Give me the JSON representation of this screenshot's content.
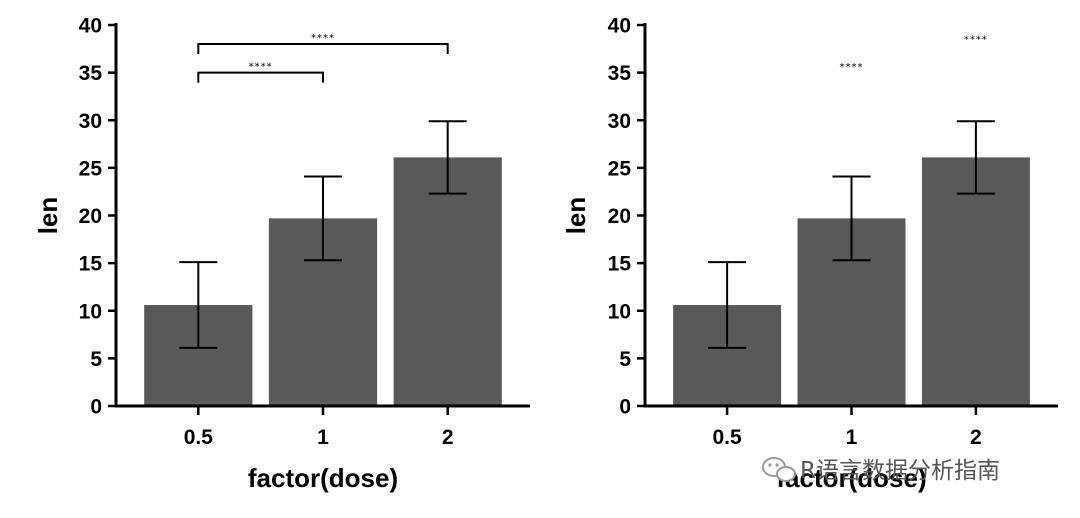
{
  "chart_data": [
    {
      "type": "bar",
      "xlabel": "factor(dose)",
      "ylabel": "len",
      "categories": [
        "0.5",
        "1",
        "2"
      ],
      "values": [
        10.6,
        19.7,
        26.1
      ],
      "error_low": [
        6.1,
        15.3,
        22.3
      ],
      "error_high": [
        15.1,
        24.1,
        29.9
      ],
      "ylim": [
        0,
        40
      ],
      "yticks": [
        "0",
        "5",
        "10",
        "15",
        "20",
        "25",
        "30",
        "35",
        "40"
      ],
      "bar_color": "#595959",
      "grid": false,
      "annotations": [
        {
          "type": "bracket",
          "from": "0.5",
          "to": "2",
          "y": 38.0,
          "label": "****"
        },
        {
          "type": "bracket",
          "from": "0.5",
          "to": "1",
          "y": 35.0,
          "label": "****"
        }
      ]
    },
    {
      "type": "bar",
      "xlabel": "factor(dose)",
      "ylabel": "len",
      "categories": [
        "0.5",
        "1",
        "2"
      ],
      "values": [
        10.6,
        19.7,
        26.1
      ],
      "error_low": [
        6.1,
        15.3,
        22.3
      ],
      "error_high": [
        15.1,
        24.1,
        29.9
      ],
      "ylim": [
        0,
        40
      ],
      "yticks": [
        "0",
        "5",
        "10",
        "15",
        "20",
        "25",
        "30",
        "35",
        "40"
      ],
      "bar_color": "#595959",
      "grid": false,
      "annotations": [
        {
          "type": "label",
          "at": "1",
          "y": 35.7,
          "label": "****"
        },
        {
          "type": "label",
          "at": "2",
          "y": 38.6,
          "label": "****"
        }
      ]
    }
  ],
  "watermark": {
    "text": "R语言数据分析指南",
    "icon": "wechat-icon"
  }
}
